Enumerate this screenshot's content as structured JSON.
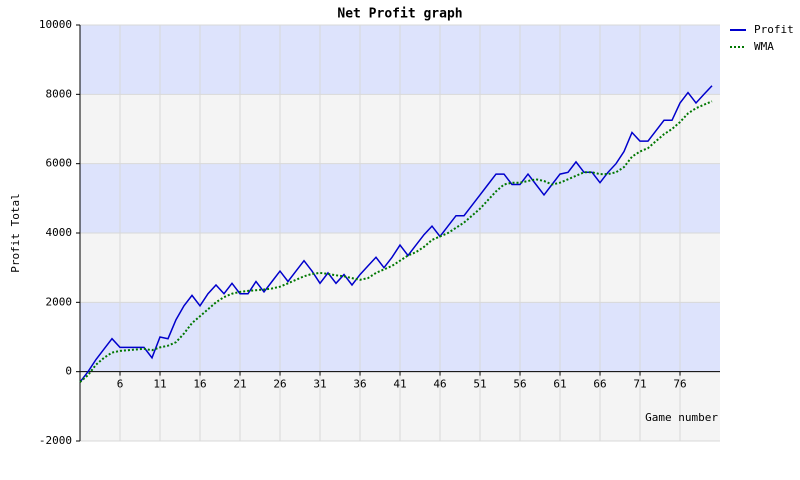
{
  "chart_data": {
    "type": "line",
    "title": "Net Profit graph",
    "x_label": "Game number",
    "y_label": "Profit Total",
    "x": [
      1,
      2,
      3,
      4,
      5,
      6,
      7,
      8,
      9,
      10,
      11,
      12,
      13,
      14,
      15,
      16,
      17,
      18,
      19,
      20,
      21,
      22,
      23,
      24,
      25,
      26,
      27,
      28,
      29,
      30,
      31,
      32,
      33,
      34,
      35,
      36,
      37,
      38,
      39,
      40,
      41,
      42,
      43,
      44,
      45,
      46,
      47,
      48,
      49,
      50,
      51,
      52,
      53,
      54,
      55,
      56,
      57,
      58,
      59,
      60,
      61,
      62,
      63,
      64,
      65,
      66,
      67,
      68,
      69,
      70,
      71,
      72,
      73,
      74,
      75,
      76,
      77,
      78,
      79,
      80
    ],
    "series": [
      {
        "name": "Profit",
        "color": "#0000cc",
        "dash": "solid",
        "values": [
          -300,
          0,
          350,
          650,
          950,
          700,
          700,
          700,
          700,
          400,
          1000,
          950,
          1500,
          1900,
          2200,
          1900,
          2250,
          2500,
          2250,
          2550,
          2250,
          2250,
          2600,
          2300,
          2600,
          2900,
          2600,
          2900,
          3200,
          2900,
          2550,
          2850,
          2550,
          2800,
          2500,
          2800,
          3050,
          3300,
          3000,
          3300,
          3650,
          3350,
          3650,
          3950,
          4200,
          3900,
          4200,
          4500,
          4500,
          4800,
          5100,
          5400,
          5700,
          5700,
          5400,
          5400,
          5700,
          5400,
          5100,
          5400,
          5700,
          5750,
          6050,
          5750,
          5750,
          5450,
          5750,
          6000,
          6350,
          6900,
          6650,
          6650,
          6950,
          7250,
          7250,
          7750,
          8050,
          7750,
          8000,
          8250
        ]
      },
      {
        "name": "WMA",
        "color": "#007700",
        "dash": "dotted",
        "values": [
          -300,
          -100,
          200,
          400,
          550,
          600,
          620,
          640,
          660,
          620,
          700,
          750,
          850,
          1100,
          1400,
          1600,
          1800,
          2000,
          2150,
          2250,
          2300,
          2330,
          2350,
          2370,
          2400,
          2450,
          2550,
          2650,
          2750,
          2820,
          2850,
          2820,
          2780,
          2750,
          2700,
          2650,
          2700,
          2850,
          2950,
          3050,
          3200,
          3350,
          3450,
          3600,
          3800,
          3900,
          4000,
          4150,
          4300,
          4500,
          4700,
          4950,
          5200,
          5400,
          5450,
          5450,
          5500,
          5550,
          5500,
          5400,
          5450,
          5550,
          5650,
          5750,
          5750,
          5700,
          5700,
          5750,
          5900,
          6200,
          6350,
          6450,
          6650,
          6850,
          7000,
          7200,
          7450,
          7600,
          7700,
          7800
        ]
      }
    ],
    "xlim": [
      1,
      81
    ],
    "xticks": [
      6,
      11,
      16,
      21,
      26,
      31,
      36,
      41,
      46,
      51,
      56,
      61,
      66,
      71,
      76
    ],
    "ylim": [
      -2000,
      10000
    ],
    "yticks": [
      -2000,
      0,
      2000,
      4000,
      6000,
      8000,
      10000
    ],
    "band_colors": [
      "#f4f4f4",
      "#dde3fc"
    ],
    "grid": true,
    "legend": "top-right"
  }
}
